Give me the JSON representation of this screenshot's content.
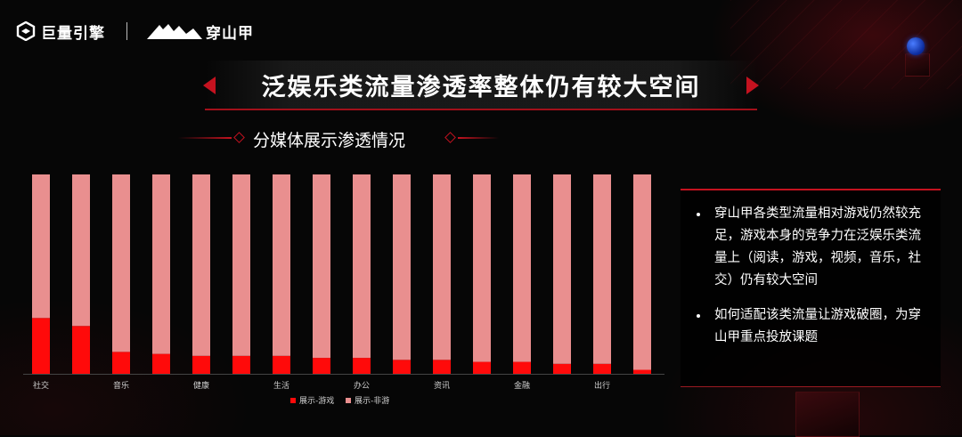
{
  "header": {
    "brand1": "巨量引擎",
    "brand2": "穿山甲"
  },
  "title": "泛娱乐类流量渗透率整体仍有较大空间",
  "subtitle": "分媒体展示渗透情况",
  "colors": {
    "accent": "#c4121f",
    "series_game": "#ff0a0a",
    "series_non_game": "#e98f8f"
  },
  "chart_data": {
    "type": "bar",
    "stacked": true,
    "normalized_percent": true,
    "categories": [
      "社交",
      "",
      "音乐",
      "",
      "健康",
      "",
      "生活",
      "",
      "办公",
      "",
      "资讯",
      "",
      "金融",
      "",
      "出行",
      ""
    ],
    "series": [
      {
        "name": "展示-游戏",
        "values": [
          28,
          24,
          11,
          10,
          9,
          9,
          9,
          8,
          8,
          7,
          7,
          6,
          6,
          5,
          5,
          2
        ]
      },
      {
        "name": "展示-非游",
        "values": [
          72,
          76,
          89,
          90,
          91,
          91,
          91,
          92,
          92,
          93,
          93,
          94,
          94,
          95,
          95,
          98
        ]
      }
    ],
    "ylim": [
      0,
      100
    ],
    "legend_position": "bottom"
  },
  "panel": {
    "bullets": [
      "穿山甲各类型流量相对游戏仍然较充足，游戏本身的竞争力在泛娱乐类流量上（阅读，游戏，视频，音乐，社交）仍有较大空间",
      "如何适配该类流量让游戏破圈，为穿山甲重点投放课题"
    ]
  }
}
